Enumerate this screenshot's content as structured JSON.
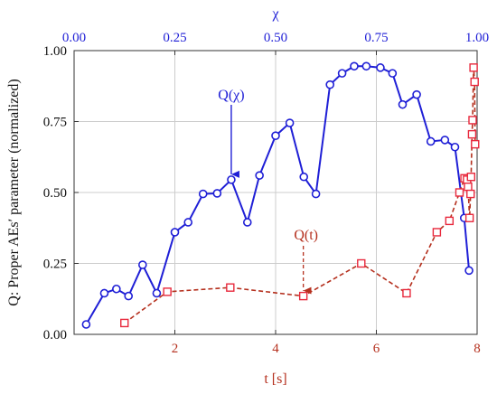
{
  "chart_data": {
    "type": "line",
    "ylabel": "Q: Proper AEs′ parameter (normalized)",
    "top_xlabel": "χ",
    "bottom_xlabel": "t [s]",
    "ylim": [
      0,
      1
    ],
    "top_xlim": [
      0,
      1
    ],
    "bottom_xlim": [
      0,
      8
    ],
    "yticks": [
      "0.00",
      "0.25",
      "0.50",
      "0.75",
      "1.00"
    ],
    "top_xticks": [
      "0.00",
      "0.25",
      "0.50",
      "0.75",
      "1.00"
    ],
    "bottom_xticks": [
      "2",
      "4",
      "6",
      "8"
    ],
    "grid": true,
    "colors": {
      "chi_series": "#1f1fd6",
      "t_series": "#b5301e",
      "t_markers": "#e8283c",
      "grid": "#cccccc"
    },
    "series": [
      {
        "name": "Q(χ)",
        "axis": "top",
        "style": "solid-circle",
        "x": [
          0.03,
          0.075,
          0.105,
          0.135,
          0.17,
          0.205,
          0.25,
          0.283,
          0.32,
          0.355,
          0.39,
          0.43,
          0.46,
          0.5,
          0.535,
          0.57,
          0.6,
          0.635,
          0.665,
          0.695,
          0.725,
          0.76,
          0.79,
          0.815,
          0.85,
          0.885,
          0.92,
          0.945,
          0.968,
          0.98
        ],
        "y": [
          0.035,
          0.145,
          0.16,
          0.135,
          0.245,
          0.145,
          0.36,
          0.395,
          0.495,
          0.497,
          0.545,
          0.395,
          0.56,
          0.7,
          0.745,
          0.555,
          0.495,
          0.88,
          0.92,
          0.945,
          0.945,
          0.94,
          0.92,
          0.81,
          0.845,
          0.68,
          0.685,
          0.66,
          0.41,
          0.225
        ]
      },
      {
        "name": "Q(t)",
        "axis": "bottom",
        "style": "dashed-square",
        "x": [
          1.0,
          1.85,
          3.1,
          4.55,
          5.7,
          6.6,
          7.2,
          7.45,
          7.65,
          7.75,
          7.8,
          7.82,
          7.85,
          7.87,
          7.88,
          7.9,
          7.91,
          7.93,
          7.95,
          7.96
        ],
        "y": [
          0.04,
          0.15,
          0.165,
          0.135,
          0.25,
          0.145,
          0.36,
          0.4,
          0.5,
          0.55,
          0.545,
          0.52,
          0.41,
          0.495,
          0.555,
          0.705,
          0.755,
          0.94,
          0.89,
          0.67
        ]
      }
    ],
    "annotations": [
      {
        "text": "Q(χ)",
        "series": 0
      },
      {
        "text": "Q(t)",
        "series": 1
      }
    ]
  }
}
